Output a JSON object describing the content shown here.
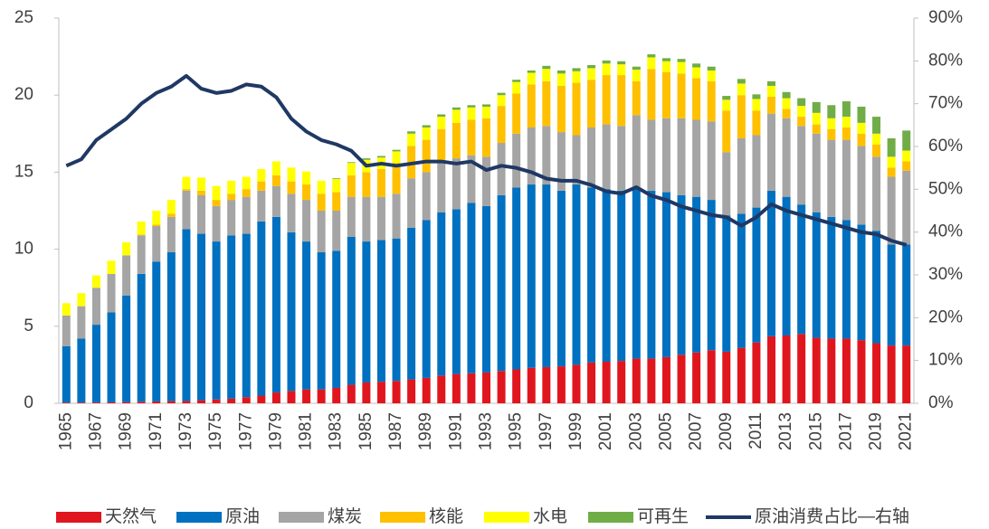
{
  "chart_data": {
    "type": "bar",
    "categories": [
      "1965",
      null,
      "1967",
      null,
      "1969",
      null,
      "1971",
      null,
      "1973",
      null,
      "1975",
      null,
      "1977",
      null,
      "1979",
      null,
      "1981",
      null,
      "1983",
      null,
      "1985",
      null,
      "1987",
      null,
      "1989",
      null,
      "1991",
      null,
      "1993",
      null,
      "1995",
      null,
      "1997",
      null,
      "1999",
      null,
      "2001",
      null,
      "2003",
      null,
      "2005",
      null,
      "2007",
      null,
      "2009",
      null,
      "2011",
      null,
      "2013",
      null,
      "2015",
      null,
      "2017",
      null,
      "2019",
      null,
      "2021"
    ],
    "series": [
      {
        "name": "天然气",
        "color": "#e0161e",
        "values": [
          0.05,
          0.05,
          0.05,
          0.06,
          0.08,
          0.1,
          0.12,
          0.14,
          0.15,
          0.2,
          0.25,
          0.3,
          0.4,
          0.5,
          0.7,
          0.8,
          0.9,
          0.9,
          1.0,
          1.2,
          1.35,
          1.4,
          1.45,
          1.55,
          1.65,
          1.8,
          1.9,
          1.95,
          2.0,
          2.1,
          2.2,
          2.3,
          2.35,
          2.4,
          2.5,
          2.65,
          2.7,
          2.75,
          2.9,
          2.9,
          3.0,
          3.15,
          3.3,
          3.45,
          3.35,
          3.6,
          3.95,
          4.35,
          4.4,
          4.5,
          4.25,
          4.2,
          4.2,
          4.1,
          3.9,
          3.75,
          3.75
        ]
      },
      {
        "name": "原油",
        "color": "#0070c0",
        "values": [
          3.65,
          4.15,
          5.05,
          5.84,
          6.92,
          8.3,
          9.08,
          9.66,
          11.15,
          10.8,
          10.25,
          10.6,
          10.6,
          11.3,
          11.4,
          10.3,
          9.6,
          8.9,
          8.9,
          9.6,
          9.15,
          9.2,
          9.25,
          9.85,
          10.25,
          10.6,
          10.7,
          11.05,
          10.8,
          11.4,
          11.8,
          11.9,
          11.85,
          11.4,
          11.7,
          11.35,
          11.2,
          11.05,
          11.0,
          10.9,
          10.7,
          10.35,
          10.1,
          9.75,
          8.85,
          8.7,
          8.75,
          9.45,
          9.0,
          8.4,
          8.15,
          7.9,
          7.7,
          7.5,
          7.3,
          6.55,
          6.55
        ]
      },
      {
        "name": "煤炭",
        "color": "#a5a5a5",
        "values": [
          2.0,
          2.1,
          2.4,
          2.5,
          2.6,
          2.5,
          2.3,
          2.3,
          2.5,
          2.5,
          2.3,
          2.3,
          2.4,
          2.0,
          2.0,
          2.5,
          2.7,
          2.7,
          2.6,
          2.6,
          2.9,
          2.8,
          2.9,
          3.2,
          3.1,
          3.2,
          3.3,
          3.1,
          3.2,
          3.4,
          3.5,
          3.7,
          3.8,
          3.8,
          3.2,
          3.9,
          4.2,
          4.2,
          4.8,
          4.6,
          4.8,
          5.0,
          5.0,
          5.1,
          4.1,
          4.9,
          4.7,
          5.0,
          5.1,
          5.1,
          5.1,
          5.0,
          5.2,
          5.1,
          4.8,
          4.4,
          4.8
        ]
      },
      {
        "name": "核能",
        "color": "#ffc000",
        "values": [
          0,
          0,
          0,
          0,
          0,
          0.05,
          0.1,
          0.2,
          0.1,
          0.3,
          0.4,
          0.4,
          0.5,
          0.6,
          0.7,
          0.8,
          1.0,
          1.1,
          1.2,
          1.4,
          1.6,
          1.8,
          2.0,
          2.1,
          2.1,
          2.2,
          2.3,
          2.3,
          2.5,
          2.4,
          2.6,
          2.8,
          2.9,
          3.0,
          3.4,
          3.1,
          3.2,
          3.3,
          2.2,
          3.3,
          3.0,
          2.9,
          2.7,
          2.6,
          2.7,
          2.8,
          1.6,
          1.1,
          0.6,
          0.6,
          0.6,
          0.7,
          0.8,
          0.8,
          0.8,
          0.6,
          0.6
        ]
      },
      {
        "name": "水电",
        "color": "#ffff00",
        "values": [
          0.8,
          0.85,
          0.8,
          0.85,
          0.85,
          0.85,
          0.9,
          0.9,
          0.8,
          0.85,
          0.9,
          0.85,
          0.8,
          0.8,
          0.9,
          0.9,
          0.85,
          0.85,
          0.85,
          0.8,
          0.8,
          0.75,
          0.75,
          0.8,
          0.8,
          0.8,
          0.85,
          0.8,
          0.75,
          0.7,
          0.75,
          0.75,
          0.8,
          0.8,
          0.75,
          0.75,
          0.75,
          0.7,
          0.75,
          0.75,
          0.7,
          0.75,
          0.7,
          0.7,
          0.7,
          0.75,
          0.75,
          0.7,
          0.7,
          0.7,
          0.75,
          0.7,
          0.7,
          0.7,
          0.7,
          0.7,
          0.7
        ]
      },
      {
        "name": "可再生",
        "color": "#70ad47",
        "values": [
          0,
          0,
          0,
          0,
          0,
          0,
          0,
          0,
          0,
          0,
          0,
          0,
          0,
          0,
          0,
          0,
          0,
          0,
          0.05,
          0.05,
          0.1,
          0.1,
          0.1,
          0.15,
          0.15,
          0.15,
          0.15,
          0.15,
          0.15,
          0.15,
          0.15,
          0.15,
          0.2,
          0.2,
          0.2,
          0.2,
          0.2,
          0.2,
          0.2,
          0.2,
          0.2,
          0.2,
          0.25,
          0.25,
          0.25,
          0.3,
          0.3,
          0.3,
          0.4,
          0.5,
          0.7,
          0.85,
          1.0,
          1.05,
          1.1,
          1.2,
          1.3
        ]
      },
      {
        "name": "原油消费占比—右轴",
        "color": "#1f3864",
        "axis": "y2",
        "values": [
          55.5,
          57,
          61.5,
          64,
          66.5,
          70,
          72.5,
          74,
          76.5,
          73.5,
          72.5,
          73,
          74.5,
          74,
          71.5,
          66.5,
          63.5,
          61.5,
          60.5,
          59,
          55.5,
          56,
          55.5,
          56,
          56.5,
          56.5,
          56,
          56.5,
          54.5,
          55.5,
          55,
          54,
          52.5,
          52,
          52,
          51,
          49.5,
          49,
          50.5,
          48.5,
          47.5,
          46,
          45,
          44,
          43.5,
          41.5,
          43.5,
          46.5,
          45,
          44,
          43,
          42,
          41,
          40,
          39.5,
          38,
          37
        ]
      }
    ],
    "ylim": [
      0,
      25
    ],
    "yticks": [
      0,
      5,
      10,
      15,
      20,
      25
    ],
    "y2lim": [
      0,
      90
    ],
    "y2ticks": [
      {
        "value": 0,
        "label": "0%"
      },
      {
        "value": 10,
        "label": "10%"
      },
      {
        "value": 20,
        "label": "20%"
      },
      {
        "value": 30,
        "label": "30%"
      },
      {
        "value": 40,
        "label": "40%"
      },
      {
        "value": 50,
        "label": "50%"
      },
      {
        "value": 60,
        "label": "60%"
      },
      {
        "value": 70,
        "label": "70%"
      },
      {
        "value": 80,
        "label": "80%"
      },
      {
        "value": 90,
        "label": "90%"
      }
    ],
    "stacked": true,
    "grid": false,
    "legend": "bottom"
  }
}
